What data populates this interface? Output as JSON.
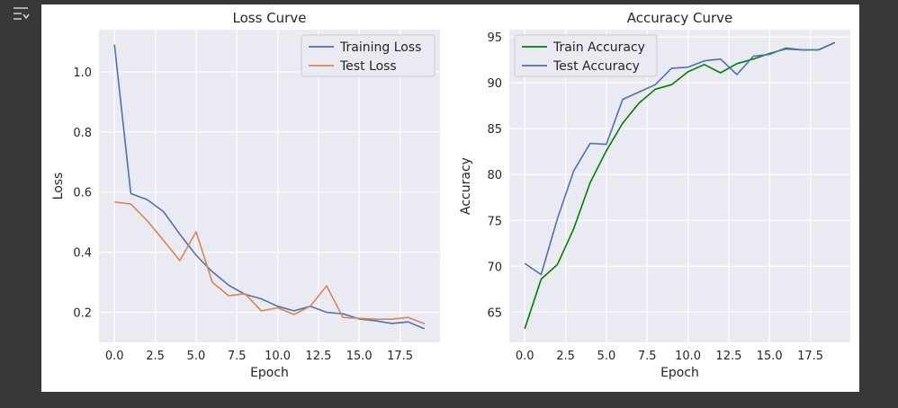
{
  "ui": {
    "gutter_icon": "output-collapse-icon",
    "background_color": "#383838"
  },
  "chart_data": [
    {
      "type": "line",
      "title": "Loss Curve",
      "xlabel": "Epoch",
      "ylabel": "Loss",
      "xlim": [
        -0.95,
        19.95
      ],
      "ylim": [
        0.1,
        1.14
      ],
      "xticks": [
        0,
        2.5,
        5,
        7.5,
        10,
        12.5,
        15,
        17.5
      ],
      "xtick_labels": [
        "0.0",
        "2.5",
        "5.0",
        "7.5",
        "10.0",
        "12.5",
        "15.0",
        "17.5"
      ],
      "yticks": [
        0.2,
        0.4,
        0.6,
        0.8,
        1.0
      ],
      "ytick_labels": [
        "0.2",
        "0.4",
        "0.6",
        "0.8",
        "1.0"
      ],
      "grid": true,
      "legend_position": "top-right",
      "x": [
        0,
        1,
        2,
        3,
        4,
        5,
        6,
        7,
        8,
        9,
        10,
        11,
        12,
        13,
        14,
        15,
        16,
        17,
        18,
        19
      ],
      "series": [
        {
          "name": "Training Loss",
          "color": "#4c72b0",
          "values": [
            1.09,
            0.595,
            0.575,
            0.535,
            0.46,
            0.39,
            0.335,
            0.29,
            0.26,
            0.245,
            0.22,
            0.205,
            0.22,
            0.2,
            0.195,
            0.178,
            0.172,
            0.163,
            0.168,
            0.145
          ]
        },
        {
          "name": "Test Loss",
          "color": "#dd8452",
          "values": [
            0.567,
            0.56,
            0.505,
            0.44,
            0.372,
            0.468,
            0.3,
            0.255,
            0.262,
            0.205,
            0.215,
            0.193,
            0.22,
            0.288,
            0.183,
            0.18,
            0.177,
            0.177,
            0.183,
            0.162
          ]
        }
      ]
    },
    {
      "type": "line",
      "title": "Accuracy Curve",
      "xlabel": "Epoch",
      "ylabel": "Accuracy",
      "xlim": [
        -0.95,
        19.95
      ],
      "ylim": [
        61.7,
        95.8
      ],
      "xticks": [
        0,
        2.5,
        5,
        7.5,
        10,
        12.5,
        15,
        17.5
      ],
      "xtick_labels": [
        "0.0",
        "2.5",
        "5.0",
        "7.5",
        "10.0",
        "12.5",
        "15.0",
        "17.5"
      ],
      "yticks": [
        65,
        70,
        75,
        80,
        85,
        90,
        95
      ],
      "ytick_labels": [
        "65",
        "70",
        "75",
        "80",
        "85",
        "90",
        "95"
      ],
      "grid": true,
      "legend_position": "top-left",
      "x": [
        0,
        1,
        2,
        3,
        4,
        5,
        6,
        7,
        8,
        9,
        10,
        11,
        12,
        13,
        14,
        15,
        16,
        17,
        18,
        19
      ],
      "series": [
        {
          "name": "Train Accuracy",
          "color": "#008000",
          "values": [
            63.2,
            68.6,
            70.2,
            74.1,
            79.1,
            82.6,
            85.6,
            87.8,
            89.3,
            89.8,
            91.2,
            92.0,
            91.1,
            92.1,
            92.6,
            93.2,
            93.7,
            93.6,
            93.6,
            94.4
          ]
        },
        {
          "name": "Test Accuracy",
          "color": "#4c72b0",
          "values": [
            70.3,
            69.1,
            75.2,
            80.4,
            83.4,
            83.3,
            88.2,
            89.0,
            89.8,
            91.6,
            91.7,
            92.4,
            92.6,
            90.9,
            92.9,
            93.1,
            93.8,
            93.6,
            93.6,
            94.4
          ]
        }
      ]
    }
  ]
}
